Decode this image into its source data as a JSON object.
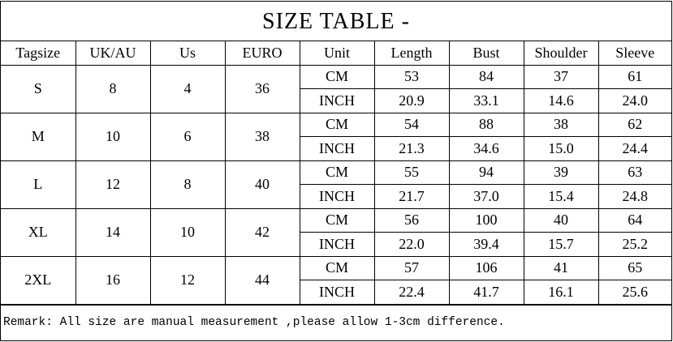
{
  "title": "SIZE TABLE -",
  "headers": [
    "Tagsize",
    "UK/AU",
    "Us",
    "EURO",
    "Unit",
    "Length",
    "Bust",
    "Shoulder",
    "Sleeve"
  ],
  "rows": [
    {
      "tag": "S",
      "uk": "8",
      "us": "4",
      "euro": "36",
      "cm": [
        "53",
        "84",
        "37",
        "61"
      ],
      "inch": [
        "20.9",
        "33.1",
        "14.6",
        "24.0"
      ]
    },
    {
      "tag": "M",
      "uk": "10",
      "us": "6",
      "euro": "38",
      "cm": [
        "54",
        "88",
        "38",
        "62"
      ],
      "inch": [
        "21.3",
        "34.6",
        "15.0",
        "24.4"
      ]
    },
    {
      "tag": "L",
      "uk": "12",
      "us": "8",
      "euro": "40",
      "cm": [
        "55",
        "94",
        "39",
        "63"
      ],
      "inch": [
        "21.7",
        "37.0",
        "15.4",
        "24.8"
      ]
    },
    {
      "tag": "XL",
      "uk": "14",
      "us": "10",
      "euro": "42",
      "cm": [
        "56",
        "100",
        "40",
        "64"
      ],
      "inch": [
        "22.0",
        "39.4",
        "15.7",
        "25.2"
      ]
    },
    {
      "tag": "2XL",
      "uk": "16",
      "us": "12",
      "euro": "44",
      "cm": [
        "57",
        "106",
        "41",
        "65"
      ],
      "inch": [
        "22.4",
        "41.7",
        "16.1",
        "25.6"
      ]
    }
  ],
  "units": {
    "cm": "CM",
    "inch": "INCH"
  },
  "remark": "Remark: All size are manual measurement ,please allow 1-3cm difference."
}
